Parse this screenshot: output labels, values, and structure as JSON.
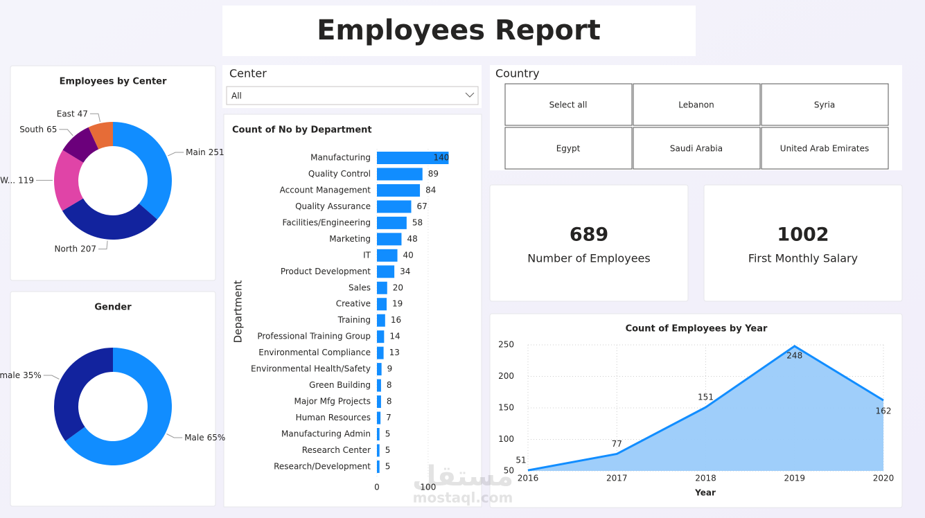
{
  "header": {
    "title": "Employees Report"
  },
  "center_slicer": {
    "label": "Center",
    "selected": "All"
  },
  "country_slicer": {
    "label": "Country",
    "options": [
      "Select all",
      "Lebanon",
      "Syria",
      "Egypt",
      "Saudi Arabia",
      "United Arab Emirates"
    ]
  },
  "cards": [
    {
      "value": 689,
      "label": "Number of Employees"
    },
    {
      "value": 1002,
      "label": "First Monthly Salary"
    }
  ],
  "watermark": {
    "arabic": "مستقل",
    "latin": "mostaql.com"
  },
  "chart_data": [
    {
      "type": "donut",
      "title": "Employees by Center",
      "categories": [
        "Main",
        "North",
        "W...",
        "South",
        "East"
      ],
      "values": [
        251,
        207,
        119,
        65,
        47
      ],
      "colors": [
        "#118DFF",
        "#12239E",
        "#E044A7",
        "#6B007B",
        "#E66C37"
      ]
    },
    {
      "type": "donut",
      "title": "Gender",
      "categories": [
        "Male",
        "Female"
      ],
      "values": [
        65,
        35
      ],
      "value_labels": [
        "65%",
        "35%"
      ],
      "colors": [
        "#118DFF",
        "#12239E"
      ]
    },
    {
      "type": "bar",
      "title": "Count of No by Department",
      "y_label": "Department",
      "categories": [
        "Manufacturing",
        "Quality Control",
        "Account Management",
        "Quality Assurance",
        "Facilities/Engineering",
        "Marketing",
        "IT",
        "Product Development",
        "Sales",
        "Creative",
        "Training",
        "Professional Training Group",
        "Environmental Compliance",
        "Environmental Health/Safety",
        "Green Building",
        "Major Mfg Projects",
        "Human Resources",
        "Manufacturing Admin",
        "Research Center",
        "Research/Development"
      ],
      "values": [
        140,
        89,
        84,
        67,
        58,
        48,
        40,
        34,
        20,
        19,
        16,
        14,
        13,
        9,
        8,
        8,
        7,
        5,
        5,
        5
      ],
      "color": "#118DFF",
      "xlim": [
        0,
        180
      ],
      "xticks": [
        0,
        100
      ],
      "grid": true
    },
    {
      "type": "area",
      "title": "Count of Employees by Year",
      "x_label": "Year",
      "x": [
        2016,
        2017,
        2018,
        2019,
        2020
      ],
      "values": [
        51,
        77,
        151,
        248,
        162
      ],
      "color": "#118DFF",
      "fill": "#9ACBFA",
      "xlim": [
        2016,
        2020
      ],
      "xticks": [
        2016,
        2017,
        2018,
        2019,
        2020
      ],
      "ylim": [
        50,
        250
      ],
      "yticks": [
        50,
        100,
        150,
        200,
        250
      ],
      "grid": true
    }
  ]
}
